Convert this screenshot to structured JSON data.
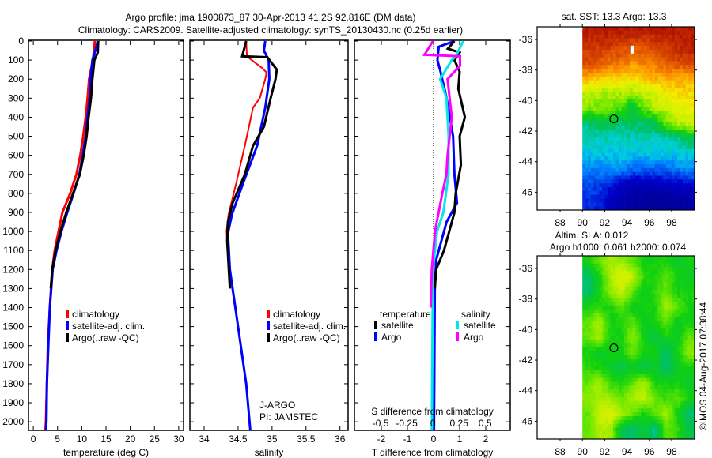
{
  "title": {
    "line1": "Argo profile: jma 1900873_87 30-Apr-2013 41.2S 92.816E (DM data)",
    "line2": "Climatology: CARS2009. Satellite-adjusted climatology: synTS_20130430.nc (0.25d earlier)"
  },
  "credit": "©IMOS 04-Aug-2017 07:38:44",
  "chart_data": [
    {
      "type": "line",
      "name": "temperature-profile",
      "xlabel": "temperature (deg C)",
      "ylabel": "depth",
      "xlim": [
        -1,
        31
      ],
      "ylim": [
        2045,
        0
      ],
      "xticks": [
        0,
        5,
        10,
        15,
        20,
        25,
        30
      ],
      "yticks": [
        0,
        100,
        200,
        300,
        400,
        500,
        600,
        700,
        800,
        900,
        1000,
        1100,
        1200,
        1300,
        1400,
        1500,
        1600,
        1700,
        1800,
        1900,
        2000
      ],
      "legend": [
        "climatology",
        "satellite-adj. clim.",
        "Argo(..raw -QC)"
      ],
      "series": [
        {
          "name": "climatology",
          "color": "#ff0000",
          "points": [
            [
              12.7,
              0
            ],
            [
              12.3,
              100
            ],
            [
              11.5,
              200
            ],
            [
              11.2,
              300
            ],
            [
              10.8,
              400
            ],
            [
              10.3,
              500
            ],
            [
              9.7,
              600
            ],
            [
              8.9,
              700
            ],
            [
              7.6,
              800
            ],
            [
              6.0,
              900
            ],
            [
              5.2,
              1000
            ],
            [
              4.4,
              1100
            ],
            [
              3.9,
              1200
            ],
            [
              3.4,
              1400
            ],
            [
              3.0,
              1600
            ],
            [
              2.8,
              1800
            ],
            [
              2.6,
              2000
            ],
            [
              2.5,
              2045
            ]
          ]
        },
        {
          "name": "satellite-adj. clim.",
          "color": "#0000ff",
          "points": [
            [
              13.3,
              0
            ],
            [
              12.8,
              50
            ],
            [
              12.2,
              100
            ],
            [
              11.8,
              200
            ],
            [
              11.6,
              300
            ],
            [
              11.2,
              400
            ],
            [
              10.8,
              500
            ],
            [
              10.2,
              600
            ],
            [
              9.5,
              700
            ],
            [
              8.3,
              800
            ],
            [
              7.0,
              900
            ],
            [
              5.8,
              1000
            ],
            [
              4.8,
              1100
            ],
            [
              4.0,
              1200
            ],
            [
              3.4,
              1400
            ],
            [
              3.1,
              1600
            ],
            [
              2.8,
              1800
            ],
            [
              2.7,
              2000
            ],
            [
              2.6,
              2045
            ]
          ]
        },
        {
          "name": "Argo(..raw -QC)",
          "color": "#000000",
          "points": [
            [
              13.4,
              0
            ],
            [
              13.3,
              60
            ],
            [
              12.6,
              100
            ],
            [
              12.2,
              200
            ],
            [
              11.9,
              300
            ],
            [
              11.4,
              400
            ],
            [
              11.0,
              500
            ],
            [
              10.4,
              600
            ],
            [
              9.6,
              700
            ],
            [
              8.2,
              800
            ],
            [
              6.8,
              900
            ],
            [
              5.6,
              1000
            ],
            [
              4.6,
              1100
            ],
            [
              3.9,
              1200
            ],
            [
              3.6,
              1300
            ]
          ]
        }
      ]
    },
    {
      "type": "line",
      "name": "salinity-profile",
      "xlabel": "salinity",
      "ylabel": "depth",
      "xlim": [
        33.79,
        36.12
      ],
      "ylim": [
        2045,
        0
      ],
      "xticks": [
        34,
        34.5,
        35,
        35.5,
        36
      ],
      "legend": [
        "climatology",
        "satellite-adj. clim.",
        "Argo(..raw -QC)"
      ],
      "annotation": [
        "J-ARGO",
        "PI: JAMSTEC"
      ],
      "series": [
        {
          "name": "climatology",
          "color": "#ff0000",
          "points": [
            [
              34.62,
              0
            ],
            [
              34.63,
              80
            ],
            [
              34.7,
              100
            ],
            [
              34.85,
              140
            ],
            [
              34.92,
              165
            ],
            [
              34.9,
              200
            ],
            [
              34.82,
              300
            ],
            [
              34.72,
              350
            ],
            [
              34.6,
              550
            ],
            [
              34.47,
              750
            ],
            [
              34.36,
              910
            ],
            [
              34.33,
              1000
            ],
            [
              34.37,
              1200
            ],
            [
              34.5,
              1500
            ],
            [
              34.62,
              1800
            ],
            [
              34.68,
              2045
            ]
          ]
        },
        {
          "name": "satellite-adj. clim.",
          "color": "#0000ff",
          "points": [
            [
              34.9,
              0
            ],
            [
              34.88,
              50
            ],
            [
              34.95,
              100
            ],
            [
              34.96,
              200
            ],
            [
              34.9,
              350
            ],
            [
              34.78,
              550
            ],
            [
              34.57,
              750
            ],
            [
              34.41,
              910
            ],
            [
              34.35,
              1010
            ],
            [
              34.38,
              1200
            ],
            [
              34.5,
              1500
            ],
            [
              34.62,
              1800
            ],
            [
              34.68,
              2045
            ]
          ]
        },
        {
          "name": "Argo(..raw -QC)",
          "color": "#000000",
          "points": [
            [
              34.62,
              0
            ],
            [
              34.56,
              80
            ],
            [
              34.93,
              85
            ],
            [
              35.07,
              150
            ],
            [
              35.05,
              200
            ],
            [
              34.98,
              300
            ],
            [
              34.88,
              450
            ],
            [
              34.72,
              550
            ],
            [
              34.6,
              700
            ],
            [
              34.42,
              850
            ],
            [
              34.35,
              950
            ],
            [
              34.34,
              1050
            ],
            [
              34.38,
              1300
            ]
          ]
        }
      ]
    },
    {
      "type": "line",
      "name": "difference-profile",
      "xlabel": "T difference from climatology",
      "x2label": "S difference from climatology",
      "xlim": [
        -3.03,
        2.94
      ],
      "x2lim": [
        -0.75,
        0.74
      ],
      "ylim": [
        2045,
        0
      ],
      "xticks": [
        -2,
        -1,
        0,
        1,
        2
      ],
      "x2ticks": [
        -0.5,
        -0.25,
        0,
        0.25,
        0.5
      ],
      "legend": {
        "temperature": {
          "heading": "temperature",
          "items": [
            "satellite",
            "Argo"
          ]
        },
        "salinity": {
          "heading": "salinity",
          "items": [
            "satellite",
            "Argo"
          ]
        }
      },
      "series": [
        {
          "name": "T satellite",
          "axis": "T",
          "color": "#0000ff",
          "points": [
            [
              0.8,
              0
            ],
            [
              0.2,
              30
            ],
            [
              0.15,
              100
            ],
            [
              0.25,
              150
            ],
            [
              0.5,
              300
            ],
            [
              0.75,
              500
            ],
            [
              0.8,
              700
            ],
            [
              0.9,
              850
            ],
            [
              0.5,
              950
            ],
            [
              0.3,
              1050
            ],
            [
              0.1,
              1150
            ],
            [
              0.05,
              1300
            ],
            [
              0.02,
              2045
            ]
          ]
        },
        {
          "name": "T Argo",
          "axis": "T",
          "color": "#000000",
          "points": [
            [
              0.8,
              0
            ],
            [
              0.55,
              40
            ],
            [
              1.0,
              60
            ],
            [
              0.8,
              100
            ],
            [
              1.0,
              160
            ],
            [
              0.95,
              250
            ],
            [
              1.2,
              400
            ],
            [
              1.0,
              500
            ],
            [
              1.05,
              650
            ],
            [
              0.85,
              800
            ],
            [
              0.8,
              900
            ],
            [
              0.6,
              1000
            ],
            [
              0.4,
              1100
            ],
            [
              0.1,
              1200
            ],
            [
              0.05,
              1300
            ]
          ]
        },
        {
          "name": "S satellite",
          "axis": "S",
          "color": "#00e8e8",
          "points": [
            [
              0.29,
              0
            ],
            [
              0.22,
              80
            ],
            [
              0.18,
              100
            ],
            [
              0.07,
              200
            ],
            [
              0.13,
              300
            ],
            [
              0.15,
              500
            ],
            [
              0.15,
              700
            ],
            [
              0.1,
              900
            ],
            [
              0.04,
              1000
            ],
            [
              0.0,
              1200
            ],
            [
              -0.01,
              2045
            ]
          ]
        },
        {
          "name": "S Argo",
          "axis": "S",
          "color": "#ff00ff",
          "points": [
            [
              0.0,
              0
            ],
            [
              -0.08,
              72
            ],
            [
              0.26,
              80
            ],
            [
              0.26,
              130
            ],
            [
              0.14,
              200
            ],
            [
              0.18,
              400
            ],
            [
              0.14,
              600
            ],
            [
              0.13,
              700
            ],
            [
              0.09,
              800
            ],
            [
              0.02,
              1000
            ],
            [
              -0.01,
              1200
            ],
            [
              -0.02,
              1400
            ]
          ]
        }
      ]
    },
    {
      "type": "heatmap",
      "name": "sst-map",
      "title": "sat. SST: 13.3 Argo: 13.3",
      "xlim": [
        85.94,
        100.06
      ],
      "ylim": [
        -47.17,
        -35.17
      ],
      "xticks": [
        88,
        90,
        92,
        94,
        96,
        98
      ],
      "yticks": [
        -36,
        -38,
        -40,
        -42,
        -44,
        -46
      ],
      "grid_lon": [
        90.5,
        91.5,
        92.5,
        93.5,
        94.5,
        95.5,
        96.5,
        97.5,
        98.5,
        99.5
      ],
      "grid_lat": [
        -35.5,
        -36.5,
        -37.5,
        -38.5,
        -39.5,
        -40.5,
        -41.5,
        -42.5,
        -43.5,
        -44.5,
        -45.5,
        -46.5
      ],
      "grid_values_normalized": [
        [
          0.95,
          0.95,
          0.95,
          0.95,
          0.95,
          0.95,
          0.95,
          0.95,
          0.95,
          0.95
        ],
        [
          0.9,
          0.9,
          0.9,
          0.88,
          0.85,
          0.85,
          0.88,
          0.9,
          0.92,
          0.95
        ],
        [
          0.88,
          0.85,
          0.82,
          0.82,
          0.78,
          0.8,
          0.82,
          0.85,
          0.88,
          0.88
        ],
        [
          0.75,
          0.72,
          0.72,
          0.7,
          0.7,
          0.72,
          0.75,
          0.75,
          0.75,
          0.75
        ],
        [
          0.62,
          0.6,
          0.6,
          0.6,
          0.58,
          0.62,
          0.65,
          0.68,
          0.7,
          0.7
        ],
        [
          0.58,
          0.56,
          0.56,
          0.55,
          0.45,
          0.56,
          0.6,
          0.62,
          0.66,
          0.68
        ],
        [
          0.42,
          0.45,
          0.45,
          0.42,
          0.45,
          0.42,
          0.45,
          0.55,
          0.6,
          0.62
        ],
        [
          0.38,
          0.38,
          0.38,
          0.38,
          0.38,
          0.38,
          0.38,
          0.38,
          0.4,
          0.45
        ],
        [
          0.35,
          0.35,
          0.35,
          0.35,
          0.35,
          0.35,
          0.35,
          0.35,
          0.35,
          0.35
        ],
        [
          0.28,
          0.28,
          0.3,
          0.3,
          0.25,
          0.25,
          0.25,
          0.25,
          0.28,
          0.3
        ],
        [
          0.22,
          0.22,
          0.18,
          0.12,
          0.1,
          0.1,
          0.1,
          0.12,
          0.12,
          0.15
        ],
        [
          0.2,
          0.18,
          0.12,
          0.08,
          0.06,
          0.06,
          0.05,
          0.06,
          0.06,
          0.06
        ]
      ],
      "marker": {
        "lon": 92.816,
        "lat": -41.2
      }
    },
    {
      "type": "heatmap",
      "name": "sla-map",
      "title": "Altim. SLA: 0.012",
      "subtitle": "Argo h1000: 0.061 h2000: 0.074",
      "xlim": [
        85.94,
        100.06
      ],
      "ylim": [
        -47.17,
        -35.17
      ],
      "xticks": [
        88,
        90,
        92,
        94,
        96,
        98
      ],
      "yticks": [
        -36,
        -38,
        -40,
        -42,
        -44,
        -46
      ],
      "grid_lon": [
        90.5,
        91.5,
        92.5,
        93.5,
        94.5,
        95.5,
        96.5,
        97.5,
        98.5,
        99.5
      ],
      "grid_lat": [
        -35.5,
        -36.5,
        -37.5,
        -38.5,
        -39.5,
        -40.5,
        -41.5,
        -42.5,
        -43.5,
        -44.5,
        -45.5,
        -46.5
      ],
      "grid_values_normalized": [
        [
          0.5,
          0.55,
          0.6,
          0.58,
          0.55,
          0.5,
          0.5,
          0.5,
          0.48,
          0.5
        ],
        [
          0.42,
          0.5,
          0.6,
          0.65,
          0.62,
          0.52,
          0.5,
          0.55,
          0.5,
          0.48
        ],
        [
          0.42,
          0.5,
          0.58,
          0.62,
          0.55,
          0.48,
          0.52,
          0.55,
          0.5,
          0.5
        ],
        [
          0.5,
          0.52,
          0.5,
          0.55,
          0.48,
          0.5,
          0.5,
          0.6,
          0.55,
          0.5
        ],
        [
          0.55,
          0.6,
          0.5,
          0.5,
          0.55,
          0.48,
          0.5,
          0.55,
          0.48,
          0.5
        ],
        [
          0.55,
          0.6,
          0.5,
          0.5,
          0.58,
          0.5,
          0.45,
          0.5,
          0.48,
          0.55
        ],
        [
          0.5,
          0.48,
          0.5,
          0.5,
          0.55,
          0.5,
          0.5,
          0.42,
          0.5,
          0.58
        ],
        [
          0.52,
          0.5,
          0.48,
          0.45,
          0.48,
          0.45,
          0.48,
          0.42,
          0.48,
          0.5
        ],
        [
          0.55,
          0.6,
          0.52,
          0.5,
          0.55,
          0.6,
          0.5,
          0.5,
          0.5,
          0.48
        ],
        [
          0.58,
          0.6,
          0.58,
          0.55,
          0.6,
          0.62,
          0.55,
          0.52,
          0.55,
          0.5
        ],
        [
          0.55,
          0.62,
          0.65,
          0.6,
          0.55,
          0.5,
          0.55,
          0.6,
          0.5,
          0.42
        ],
        [
          0.55,
          0.6,
          0.6,
          0.45,
          0.42,
          0.48,
          0.4,
          0.55,
          0.52,
          0.45
        ]
      ],
      "marker": {
        "lon": 92.816,
        "lat": -41.2
      }
    }
  ]
}
